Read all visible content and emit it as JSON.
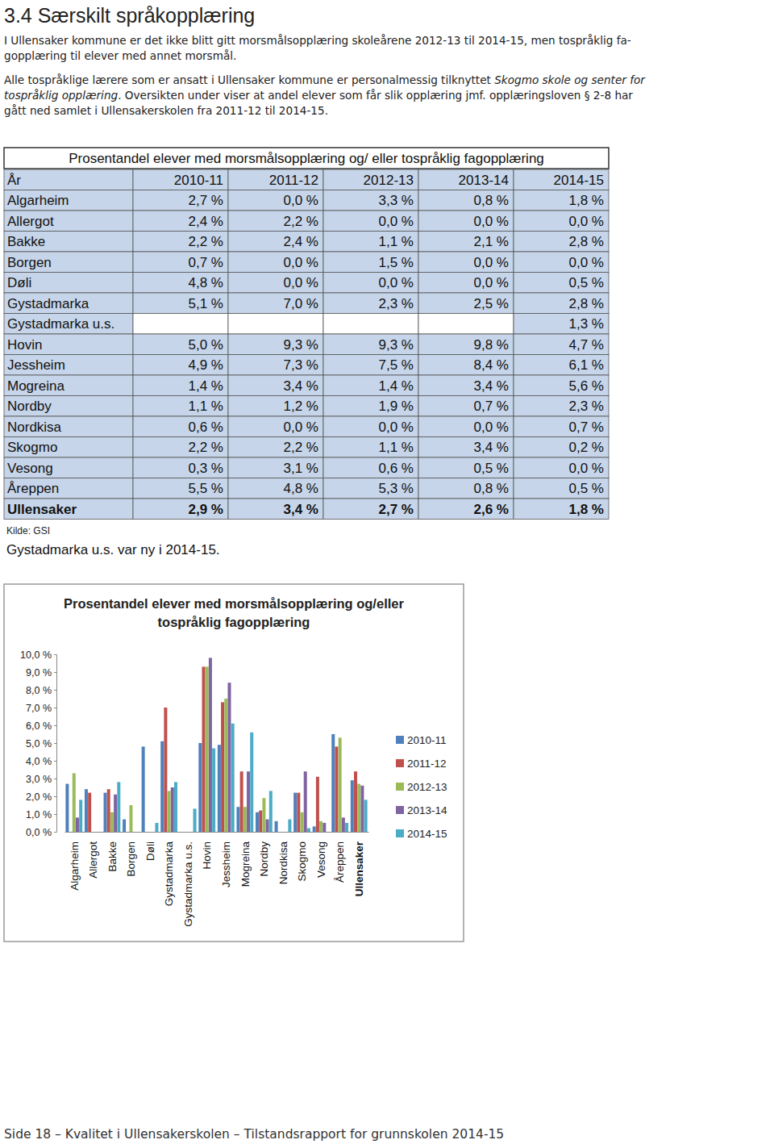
{
  "heading": "3.4 Særskilt språkopplæring",
  "paragraphs": [
    [
      [
        {
          "text": "I Ullensaker kommune er det ikke blitt gitt morsmålsopplæring skoleårene 2012-13 til 2014-15, men tospråklig fa-"
        }
      ],
      [
        {
          "text": "gopplæring til elever med annet morsmål."
        }
      ]
    ],
    [
      [
        {
          "text": "Alle tospråklige lærere som er ansatt i Ullensaker kommune er personalmessig tilknyttet "
        },
        {
          "text": "Skogmo skole og senter for",
          "italic": true
        }
      ],
      [
        {
          "text": "tospråklig opplæring",
          "italic": true
        },
        {
          "text": ". Oversikten under viser at andel elever som får slik opplæring jmf. opplæringsloven § 2-8 har"
        }
      ],
      [
        {
          "text": "gått ned samlet i Ullensakerskolen fra 2011-12 til 2014-15."
        }
      ]
    ]
  ],
  "table": {
    "title": "Prosentandel elever med morsmålsopplæring og/ eller tospråklig fagopplæring",
    "header": [
      "År",
      "2010-11",
      "2011-12",
      "2012-13",
      "2013-14",
      "2014-15"
    ],
    "rows": [
      [
        "Algarheim",
        "2,7 %",
        "0,0 %",
        "3,3 %",
        "0,8 %",
        "1,8 %"
      ],
      [
        "Allergot",
        "2,4 %",
        "2,2 %",
        "0,0 %",
        "0,0 %",
        "0,0 %"
      ],
      [
        "Bakke",
        "2,2 %",
        "2,4 %",
        "1,1 %",
        "2,1 %",
        "2,8 %"
      ],
      [
        "Borgen",
        "0,7 %",
        "0,0 %",
        "1,5 %",
        "0,0 %",
        "0,0 %"
      ],
      [
        "Døli",
        "4,8 %",
        "0,0 %",
        "0,0 %",
        "0,0 %",
        "0,5 %"
      ],
      [
        "Gystadmarka",
        "5,1 %",
        "7,0 %",
        "2,3 %",
        "2,5 %",
        "2,8 %"
      ],
      [
        "Gystadmarka u.s.",
        null,
        null,
        null,
        null,
        "1,3 %"
      ],
      [
        "Hovin",
        "5,0 %",
        "9,3 %",
        "9,3 %",
        "9,8 %",
        "4,7 %"
      ],
      [
        "Jessheim",
        "4,9 %",
        "7,3 %",
        "7,5 %",
        "8,4 %",
        "6,1 %"
      ],
      [
        "Mogreina",
        "1,4 %",
        "3,4 %",
        "1,4 %",
        "3,4 %",
        "5,6 %"
      ],
      [
        "Nordby",
        "1,1 %",
        "1,2 %",
        "1,9 %",
        "0,7 %",
        "2,3 %"
      ],
      [
        "Nordkisa",
        "0,6 %",
        "0,0 %",
        "0,0 %",
        "0,0 %",
        "0,7 %"
      ],
      [
        "Skogmo",
        "2,2 %",
        "2,2 %",
        "1,1 %",
        "3,4 %",
        "0,2 %"
      ],
      [
        "Vesong",
        "0,3 %",
        "3,1 %",
        "0,6 %",
        "0,5 %",
        "0,0 %"
      ],
      [
        "Åreppen",
        "5,5 %",
        "4,8 %",
        "5,3 %",
        "0,8 %",
        "0,5 %"
      ],
      [
        "Ullensaker",
        "2,9 %",
        "3,4 %",
        "2,7 %",
        "2,6 %",
        "1,8 %"
      ]
    ]
  },
  "source": "Kilde: GSI",
  "note": "Gystadmarka u.s. var ny i 2014-15.",
  "chart_data": {
    "type": "bar",
    "title": "Prosentandel elever med morsmålsopplæring og/eller tospråklig fagopplæring",
    "categories": [
      "Algarheim",
      "Allergot",
      "Bakke",
      "Borgen",
      "Døli",
      "Gystadmarka",
      "Gystadmarka u.s.",
      "Hovin",
      "Jessheim",
      "Mogreina",
      "Nordby",
      "Nordkisa",
      "Skogmo",
      "Vesong",
      "Åreppen",
      "Ullensaker"
    ],
    "series": [
      {
        "name": "2010-11",
        "color": "#4f81bd",
        "values": [
          2.7,
          2.4,
          2.2,
          0.7,
          4.8,
          5.1,
          null,
          5.0,
          4.9,
          1.4,
          1.1,
          0.6,
          2.2,
          0.3,
          5.5,
          2.9
        ]
      },
      {
        "name": "2011-12",
        "color": "#c0504d",
        "values": [
          0.0,
          2.2,
          2.4,
          0.0,
          0.0,
          7.0,
          null,
          9.3,
          7.3,
          3.4,
          1.2,
          0.0,
          2.2,
          3.1,
          4.8,
          3.4
        ]
      },
      {
        "name": "2012-13",
        "color": "#9bbb59",
        "values": [
          3.3,
          0.0,
          1.1,
          1.5,
          0.0,
          2.3,
          null,
          9.3,
          7.5,
          1.4,
          1.9,
          0.0,
          1.1,
          0.6,
          5.3,
          2.7
        ]
      },
      {
        "name": "2013-14",
        "color": "#8064a2",
        "values": [
          0.8,
          0.0,
          2.1,
          0.0,
          0.0,
          2.5,
          null,
          9.8,
          8.4,
          3.4,
          0.7,
          0.0,
          3.4,
          0.5,
          0.8,
          2.6
        ]
      },
      {
        "name": "2014-15",
        "color": "#4bacc6",
        "values": [
          1.8,
          0.0,
          2.8,
          0.0,
          0.5,
          2.8,
          1.3,
          4.7,
          6.1,
          5.6,
          2.3,
          0.7,
          0.2,
          0.0,
          0.5,
          1.8
        ]
      }
    ],
    "ylim": [
      0,
      10
    ],
    "yticks": [
      {
        "value": 0,
        "label": "0,0 %"
      },
      {
        "value": 1,
        "label": "1,0 %"
      },
      {
        "value": 2,
        "label": "2,0 %"
      },
      {
        "value": 3,
        "label": "3,0 %"
      },
      {
        "value": 4,
        "label": "4,0 %"
      },
      {
        "value": 5,
        "label": "5,0 %"
      },
      {
        "value": 6,
        "label": "6,0 %"
      },
      {
        "value": 7,
        "label": "7,0 %"
      },
      {
        "value": 8,
        "label": "8,0 %"
      },
      {
        "value": 9,
        "label": "9,0 %"
      },
      {
        "value": 10,
        "label": "10,0 %"
      }
    ],
    "grid": false,
    "legend": "right"
  },
  "footer": "Side 18 – Kvalitet i Ullensakerskolen – Tilstandsrapport for grunnskolen 2014-15"
}
